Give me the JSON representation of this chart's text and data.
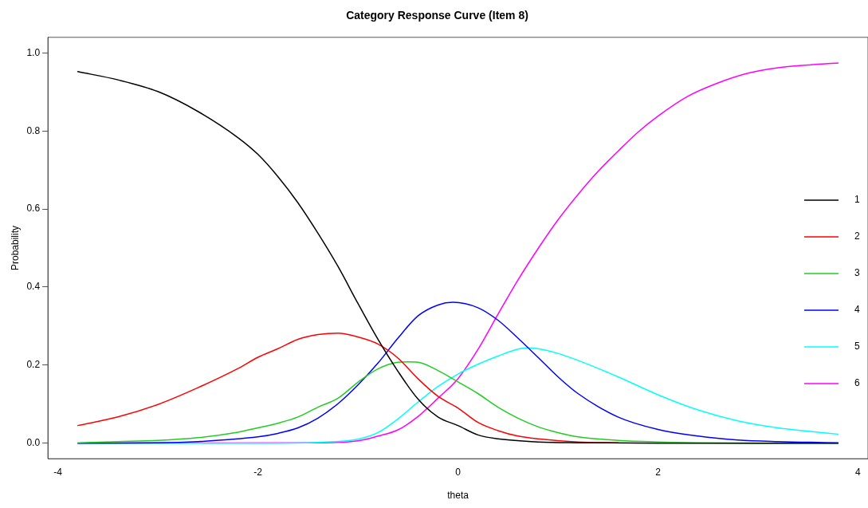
{
  "chart_data": {
    "type": "line",
    "title": "Category Response Curve (Item 8)",
    "xlabel": "theta",
    "ylabel": "Probability",
    "xlim": [
      -4.1,
      4.1
    ],
    "xticks": [
      -4,
      -2,
      0,
      2,
      4
    ],
    "ylim": [
      -0.04,
      1.04
    ],
    "yticks": [
      {
        "value": 0,
        "label": "0.0"
      },
      {
        "value": 0.2,
        "label": "0.2"
      },
      {
        "value": 0.4,
        "label": "0.4"
      },
      {
        "value": 0.6,
        "label": "0.6"
      },
      {
        "value": 0.8,
        "label": "0.8"
      },
      {
        "value": 1,
        "label": "1.0"
      }
    ],
    "grid": false,
    "legend": "right",
    "marker": "none",
    "line_style": "solid",
    "series": [
      {
        "name": "1",
        "color": "#000000",
        "x": [
          -3.8,
          -3.4,
          -3,
          -2.6,
          -2.2,
          -2,
          -1.8,
          -1.6,
          -1.4,
          -1.2,
          -1,
          -0.8,
          -0.6,
          -0.4,
          -0.2,
          0,
          0.2,
          0.4,
          0.8,
          1.2,
          2,
          3,
          3.8
        ],
        "values": [
          0.952,
          0.931,
          0.901,
          0.85,
          0.783,
          0.74,
          0.683,
          0.616,
          0.538,
          0.453,
          0.358,
          0.266,
          0.184,
          0.113,
          0.067,
          0.045,
          0.021,
          0.011,
          0.003,
          0.001,
          0,
          0,
          0
        ]
      },
      {
        "name": "2",
        "color": "#ff0000",
        "x": [
          -3.8,
          -3.4,
          -3,
          -2.6,
          -2.2,
          -2,
          -1.8,
          -1.6,
          -1.4,
          -1.2,
          -1,
          -0.8,
          -0.6,
          -0.4,
          -0.2,
          0,
          0.2,
          0.4,
          0.6,
          0.8,
          1.2,
          1.6
        ],
        "values": [
          0.045,
          0.067,
          0.099,
          0.142,
          0.191,
          0.22,
          0.242,
          0.266,
          0.278,
          0.282,
          0.272,
          0.254,
          0.218,
          0.165,
          0.12,
          0.09,
          0.053,
          0.032,
          0.018,
          0.011,
          0.003,
          0.001
        ]
      },
      {
        "name": "3",
        "color": "#22cc22",
        "x": [
          -3.8,
          -3.4,
          -3,
          -2.6,
          -2.2,
          -2,
          -1.8,
          -1.6,
          -1.4,
          -1.2,
          -1,
          -0.8,
          -0.6,
          -0.5,
          -0.4,
          -0.2,
          0,
          0.2,
          0.4,
          0.6,
          0.8,
          1,
          1.2,
          1.6,
          2,
          2.4,
          3,
          3.8
        ],
        "values": [
          0.001,
          0.004,
          0.007,
          0.014,
          0.028,
          0.039,
          0.051,
          0.067,
          0.092,
          0.115,
          0.156,
          0.19,
          0.207,
          0.208,
          0.207,
          0.186,
          0.157,
          0.127,
          0.092,
          0.064,
          0.042,
          0.027,
          0.016,
          0.007,
          0.003,
          0.001,
          0,
          0
        ]
      },
      {
        "name": "4",
        "color": "#0000ff",
        "x": [
          -3.8,
          -3,
          -2.6,
          -2.2,
          -2,
          -1.8,
          -1.6,
          -1.4,
          -1.2,
          -1,
          -0.8,
          -0.6,
          -0.4,
          -0.2,
          -0.05,
          0.2,
          0.4,
          0.6,
          0.8,
          1,
          1.2,
          1.6,
          2,
          2.4,
          2.8,
          3.2,
          3.8
        ],
        "values": [
          0,
          0.001,
          0.004,
          0.011,
          0.016,
          0.025,
          0.039,
          0.064,
          0.101,
          0.149,
          0.205,
          0.269,
          0.326,
          0.354,
          0.361,
          0.347,
          0.315,
          0.269,
          0.22,
          0.17,
          0.127,
          0.067,
          0.035,
          0.018,
          0.008,
          0.004,
          0.001
        ]
      },
      {
        "name": "5",
        "color": "#00ffff",
        "x": [
          -3.8,
          -2,
          -1.4,
          -1,
          -0.8,
          -0.6,
          -0.4,
          -0.2,
          0,
          0.2,
          0.4,
          0.6,
          0.7,
          0.8,
          1,
          1.2,
          1.6,
          2,
          2.4,
          2.8,
          3.2,
          3.6,
          3.8
        ],
        "values": [
          0,
          0,
          0.002,
          0.01,
          0.027,
          0.062,
          0.105,
          0.145,
          0.177,
          0.202,
          0.223,
          0.241,
          0.244,
          0.242,
          0.23,
          0.212,
          0.17,
          0.124,
          0.085,
          0.057,
          0.039,
          0.028,
          0.023
        ]
      },
      {
        "name": "6",
        "color": "#ff00ff",
        "x": [
          -3.8,
          -1.4,
          -1,
          -0.8,
          -0.6,
          -0.4,
          -0.2,
          0,
          0.2,
          0.4,
          0.6,
          0.8,
          1,
          1.2,
          1.4,
          1.6,
          1.8,
          2,
          2.3,
          2.6,
          2.9,
          3.2,
          3.5,
          3.8
        ],
        "values": [
          0,
          0.001,
          0.006,
          0.018,
          0.034,
          0.068,
          0.115,
          0.165,
          0.24,
          0.33,
          0.418,
          0.498,
          0.572,
          0.637,
          0.696,
          0.748,
          0.797,
          0.838,
          0.889,
          0.923,
          0.948,
          0.962,
          0.969,
          0.974
        ]
      }
    ]
  }
}
